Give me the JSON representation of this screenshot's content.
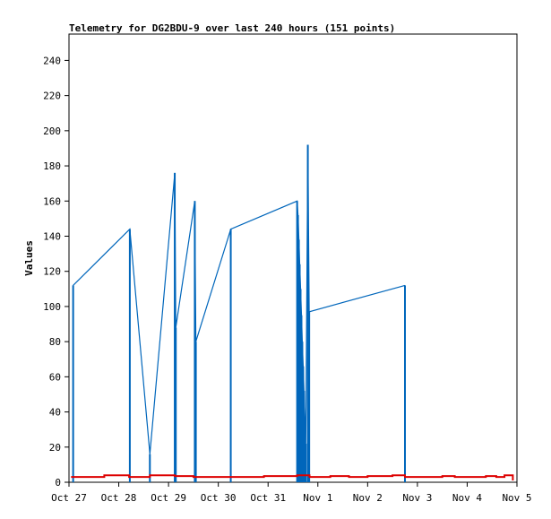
{
  "chart_data": {
    "type": "line",
    "title": "Telemetry for DG2BDU-9 over last 240 hours (151 points)",
    "xlabel": "",
    "ylabel": "Values",
    "ylim": [
      0,
      255
    ],
    "yticks": [
      0,
      20,
      40,
      60,
      80,
      100,
      120,
      140,
      160,
      180,
      200,
      220,
      240
    ],
    "xlim": [
      "2023-10-27 00:00",
      "2023-11-05 00:00"
    ],
    "xticks": [
      {
        "label": "Oct 27",
        "date": "2023-10-27 00:00"
      },
      {
        "label": "Oct 28",
        "date": "2023-10-28 00:00"
      },
      {
        "label": "Oct 29",
        "date": "2023-10-29 00:00"
      },
      {
        "label": "Oct 30",
        "date": "2023-10-30 00:00"
      },
      {
        "label": "Oct 31",
        "date": "2023-10-31 00:00"
      },
      {
        "label": "Nov 1",
        "date": "2023-11-01 00:00"
      },
      {
        "label": "Nov 2",
        "date": "2023-11-02 00:00"
      },
      {
        "label": "Nov 3",
        "date": "2023-11-03 00:00"
      },
      {
        "label": "Nov 4",
        "date": "2023-11-04 00:00"
      },
      {
        "label": "Nov 5",
        "date": "2023-11-05 00:00"
      }
    ],
    "grid": false,
    "series": [
      {
        "color": "#0066bb",
        "style": "impulse",
        "points": [
          {
            "x": "2023-10-27 02:00",
            "y": 112
          },
          {
            "x": "2023-10-28 05:20",
            "y": 144
          },
          {
            "x": "2023-10-28 15:00",
            "y": 16
          },
          {
            "x": "2023-10-29 03:00",
            "y": 176
          },
          {
            "x": "2023-10-29 03:30",
            "y": 88
          },
          {
            "x": "2023-10-29 12:40",
            "y": 160
          },
          {
            "x": "2023-10-29 13:10",
            "y": 80
          },
          {
            "x": "2023-10-30 06:00",
            "y": 144
          },
          {
            "x": "2023-10-31 14:00",
            "y": 160
          },
          {
            "x": "2023-10-31 14:25",
            "y": 152
          },
          {
            "x": "2023-10-31 14:50",
            "y": 138
          },
          {
            "x": "2023-10-31 15:15",
            "y": 124
          },
          {
            "x": "2023-10-31 15:40",
            "y": 110
          },
          {
            "x": "2023-10-31 16:05",
            "y": 95
          },
          {
            "x": "2023-10-31 16:30",
            "y": 80
          },
          {
            "x": "2023-10-31 16:55",
            "y": 66
          },
          {
            "x": "2023-10-31 17:20",
            "y": 52
          },
          {
            "x": "2023-10-31 17:45",
            "y": 37
          },
          {
            "x": "2023-10-31 18:10",
            "y": 22
          },
          {
            "x": "2023-10-31 19:10",
            "y": 192
          },
          {
            "x": "2023-10-31 19:50",
            "y": 97
          },
          {
            "x": "2023-11-02 18:00",
            "y": 112
          }
        ]
      },
      {
        "color": "#dd0000",
        "style": "step",
        "points": [
          {
            "x": "2023-10-27 01:00",
            "y": 3
          },
          {
            "x": "2023-10-27 17:00",
            "y": 4
          },
          {
            "x": "2023-10-28 05:00",
            "y": 3
          },
          {
            "x": "2023-10-28 15:00",
            "y": 4
          },
          {
            "x": "2023-10-29 03:00",
            "y": 3.5
          },
          {
            "x": "2023-10-29 12:00",
            "y": 3
          },
          {
            "x": "2023-10-30 06:00",
            "y": 3
          },
          {
            "x": "2023-10-30 22:00",
            "y": 3.5
          },
          {
            "x": "2023-10-31 14:00",
            "y": 4
          },
          {
            "x": "2023-10-31 20:00",
            "y": 3
          },
          {
            "x": "2023-11-01 06:00",
            "y": 3.5
          },
          {
            "x": "2023-11-01 15:00",
            "y": 3
          },
          {
            "x": "2023-11-02 00:00",
            "y": 3.5
          },
          {
            "x": "2023-11-02 12:00",
            "y": 4
          },
          {
            "x": "2023-11-02 18:00",
            "y": 3
          },
          {
            "x": "2023-11-03 12:00",
            "y": 3.5
          },
          {
            "x": "2023-11-03 18:00",
            "y": 3
          },
          {
            "x": "2023-11-04 09:00",
            "y": 3.5
          },
          {
            "x": "2023-11-04 14:00",
            "y": 3
          },
          {
            "x": "2023-11-04 18:00",
            "y": 4
          },
          {
            "x": "2023-11-04 22:00",
            "y": 1
          }
        ]
      }
    ]
  }
}
